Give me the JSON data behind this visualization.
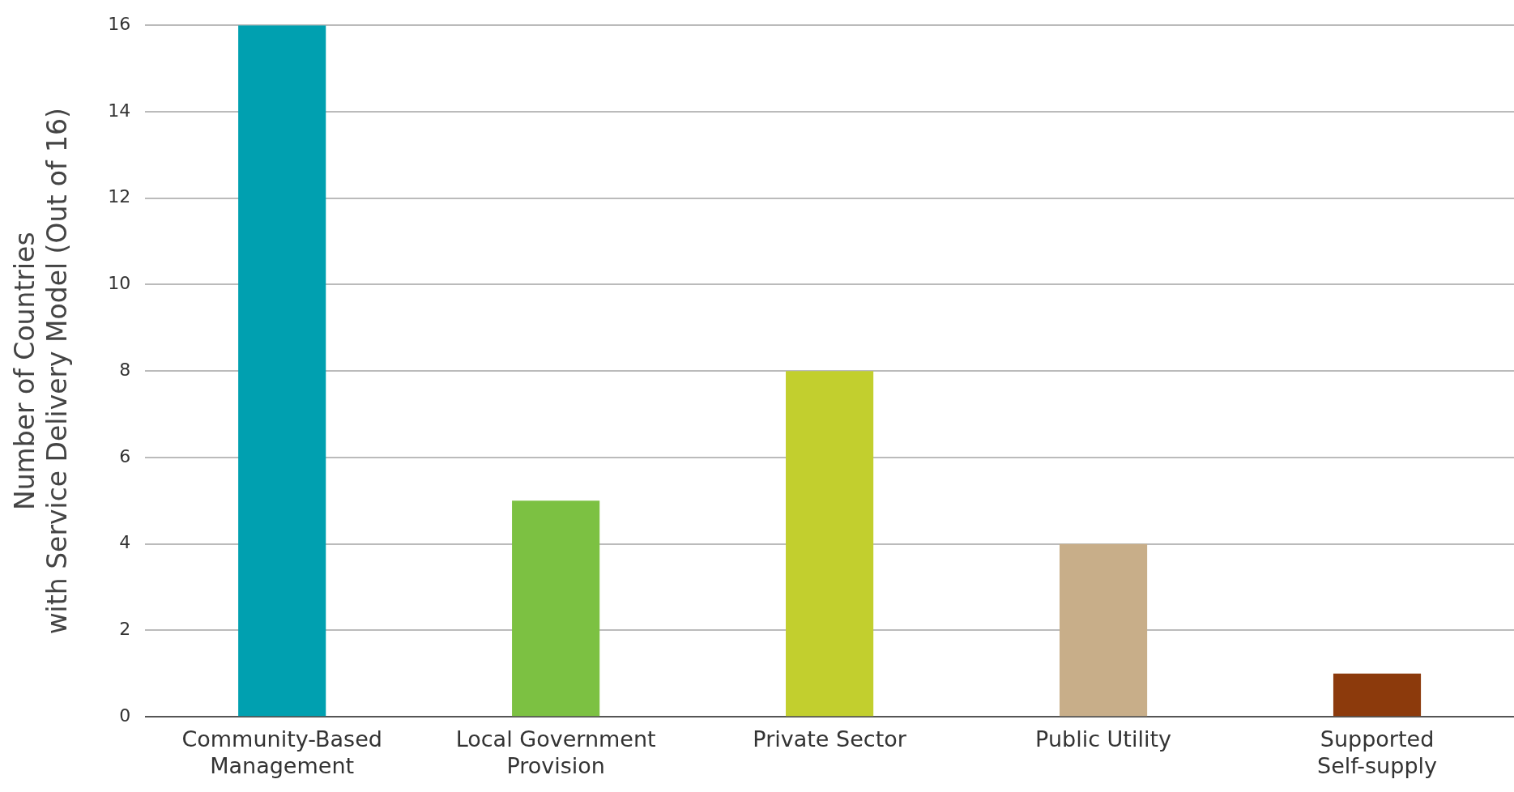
{
  "chart_data": {
    "type": "bar",
    "ylabel": "Number of Countries\nwith Service Delivery Model (Out of 16)",
    "categories": [
      "Community-Based\nManagement",
      "Local Government\nProvision",
      "Private Sector",
      "Public Utility",
      "Supported\nSelf-supply"
    ],
    "values": [
      16,
      5,
      8,
      4,
      1
    ],
    "colors": [
      "#00a0b0",
      "#7cc142",
      "#c2cf2e",
      "#c8ae89",
      "#8c3a0c"
    ],
    "ylim": [
      0,
      16
    ],
    "yticks": [
      0,
      2,
      4,
      6,
      8,
      10,
      12,
      14,
      16
    ],
    "grid": "y"
  }
}
